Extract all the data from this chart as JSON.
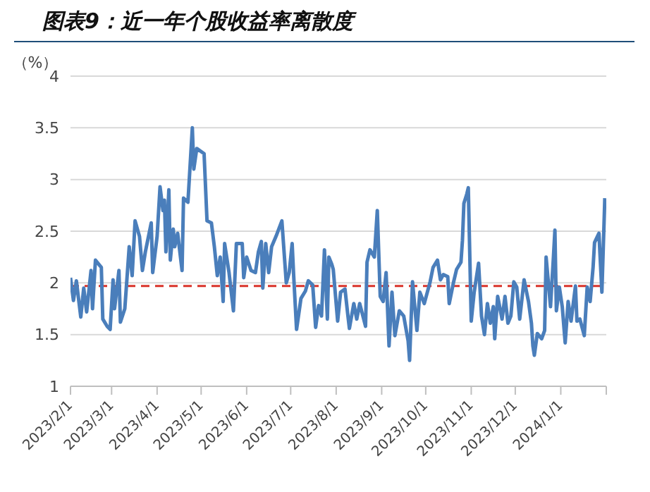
{
  "chart_data": {
    "type": "line",
    "title": "图表9：近一年个股收益率离散度",
    "ylabel": "（%）",
    "x": [
      "2023-02-01",
      "2023-02-03",
      "2023-02-05",
      "2023-02-08",
      "2023-02-10",
      "2023-02-12",
      "2023-02-15",
      "2023-02-16",
      "2023-02-18",
      "2023-02-22",
      "2023-02-23",
      "2023-02-26",
      "2023-02-28",
      "2023-03-02",
      "2023-03-03",
      "2023-03-06",
      "2023-03-07",
      "2023-03-10",
      "2023-03-13",
      "2023-03-15",
      "2023-03-17",
      "2023-03-20",
      "2023-03-22",
      "2023-03-24",
      "2023-03-28",
      "2023-03-29",
      "2023-04-01",
      "2023-04-03",
      "2023-04-05",
      "2023-04-06",
      "2023-04-07",
      "2023-04-09",
      "2023-04-10",
      "2023-04-12",
      "2023-04-13",
      "2023-04-15",
      "2023-04-18",
      "2023-04-19",
      "2023-04-22",
      "2023-04-25",
      "2023-04-26",
      "2023-04-28",
      "2023-05-03",
      "2023-05-05",
      "2023-05-08",
      "2023-05-10",
      "2023-05-12",
      "2023-05-14",
      "2023-05-16",
      "2023-05-17",
      "2023-05-20",
      "2023-05-23",
      "2023-05-25",
      "2023-05-29",
      "2023-05-30",
      "2023-06-01",
      "2023-06-04",
      "2023-06-07",
      "2023-06-09",
      "2023-06-11",
      "2023-06-12",
      "2023-06-14",
      "2023-06-16",
      "2023-06-18",
      "2023-06-21",
      "2023-06-25",
      "2023-06-28",
      "2023-06-30",
      "2023-07-02",
      "2023-07-03",
      "2023-07-05",
      "2023-07-08",
      "2023-07-11",
      "2023-07-13",
      "2023-07-16",
      "2023-07-18",
      "2023-07-20",
      "2023-07-22",
      "2023-07-24",
      "2023-07-26",
      "2023-07-27",
      "2023-07-29",
      "2023-07-30",
      "2023-08-02",
      "2023-08-04",
      "2023-08-07",
      "2023-08-09",
      "2023-08-10",
      "2023-08-13",
      "2023-08-15",
      "2023-08-17",
      "2023-08-21",
      "2023-08-22",
      "2023-08-24",
      "2023-08-27",
      "2023-08-29",
      "2023-08-31",
      "2023-09-02",
      "2023-09-04",
      "2023-09-06",
      "2023-09-08",
      "2023-09-10",
      "2023-09-13",
      "2023-09-16",
      "2023-09-19",
      "2023-09-20",
      "2023-09-22",
      "2023-09-25",
      "2023-09-27",
      "2023-09-30",
      "2023-10-04",
      "2023-10-06",
      "2023-10-09",
      "2023-10-11",
      "2023-10-13",
      "2023-10-16",
      "2023-10-17",
      "2023-10-20",
      "2023-10-22",
      "2023-10-25",
      "2023-10-26",
      "2023-10-27",
      "2023-10-29",
      "2023-10-30",
      "2023-11-01",
      "2023-11-03",
      "2023-11-06",
      "2023-11-08",
      "2023-11-10",
      "2023-11-12",
      "2023-11-14",
      "2023-11-16",
      "2023-11-17",
      "2023-11-19",
      "2023-11-22",
      "2023-11-24",
      "2023-11-26",
      "2023-11-28",
      "2023-11-30",
      "2023-12-02",
      "2023-12-04",
      "2023-12-07",
      "2023-12-10",
      "2023-12-12",
      "2023-12-13",
      "2023-12-14",
      "2023-12-16",
      "2023-12-19",
      "2023-12-21",
      "2023-12-22",
      "2023-12-25",
      "2023-12-27",
      "2023-12-28",
      "2023-12-29",
      "2023-12-31",
      "2024-01-02",
      "2024-01-04",
      "2024-01-06",
      "2024-01-08",
      "2024-01-11",
      "2024-01-12",
      "2024-01-14",
      "2024-01-17",
      "2024-01-19",
      "2024-01-21",
      "2024-01-23",
      "2024-01-24",
      "2024-01-27",
      "2024-01-29",
      "2024-01-31"
    ],
    "series": [
      {
        "color": "#4a7ebb",
        "values": [
          2.05,
          1.83,
          2.02,
          1.67,
          1.95,
          1.72,
          2.12,
          1.75,
          2.22,
          2.15,
          1.65,
          1.58,
          1.55,
          2.03,
          1.75,
          2.12,
          1.62,
          1.75,
          2.35,
          2.07,
          2.6,
          2.45,
          2.12,
          2.3,
          2.58,
          2.1,
          2.45,
          2.93,
          2.7,
          2.8,
          2.3,
          2.9,
          2.22,
          2.52,
          2.35,
          2.48,
          2.12,
          2.82,
          2.78,
          3.5,
          3.1,
          3.3,
          3.25,
          2.6,
          2.58,
          2.35,
          2.07,
          2.25,
          1.82,
          2.38,
          2.1,
          1.73,
          2.38,
          2.38,
          2.05,
          2.25,
          2.12,
          2.1,
          2.3,
          2.4,
          1.95,
          2.38,
          2.1,
          2.35,
          2.45,
          2.6,
          2.0,
          2.1,
          2.38,
          2.08,
          1.55,
          1.85,
          1.92,
          2.02,
          1.98,
          1.57,
          1.78,
          1.68,
          2.32,
          1.65,
          2.25,
          2.18,
          2.13,
          1.63,
          1.91,
          1.94,
          1.68,
          1.56,
          1.8,
          1.65,
          1.8,
          1.58,
          2.2,
          2.32,
          2.25,
          2.7,
          1.87,
          1.82,
          2.1,
          1.39,
          1.91,
          1.49,
          1.73,
          1.68,
          1.44,
          1.25,
          2.01,
          1.54,
          1.91,
          1.8,
          2.01,
          2.15,
          2.22,
          2.03,
          2.08,
          2.06,
          1.8,
          2.01,
          2.13,
          2.2,
          2.41,
          2.77,
          2.86,
          2.92,
          1.63,
          1.91,
          2.19,
          1.68,
          1.5,
          1.8,
          1.61,
          1.77,
          1.46,
          1.87,
          1.65,
          1.87,
          1.61,
          1.68,
          2.01,
          1.96,
          1.65,
          2.03,
          1.82,
          1.61,
          1.39,
          1.3,
          1.51,
          1.46,
          1.54,
          2.25,
          1.77,
          2.25,
          2.51,
          1.73,
          1.96,
          1.77,
          1.42,
          1.82,
          1.63,
          1.97,
          1.63,
          1.65,
          1.49,
          1.96,
          1.82,
          2.15,
          2.39,
          2.48,
          1.91,
          2.82
        ]
      }
    ],
    "xlim": [
      "2023-02-01",
      "2024-02-01"
    ],
    "xticks": [
      {
        "value": "2023-02-01",
        "label": "2023/2/1"
      },
      {
        "value": "2023-03-01",
        "label": "2023/3/1"
      },
      {
        "value": "2023-04-01",
        "label": "2023/4/1"
      },
      {
        "value": "2023-05-01",
        "label": "2023/5/1"
      },
      {
        "value": "2023-06-01",
        "label": "2023/6/1"
      },
      {
        "value": "2023-07-01",
        "label": "2023/7/1"
      },
      {
        "value": "2023-08-01",
        "label": "2023/8/1"
      },
      {
        "value": "2023-09-01",
        "label": "2023/9/1"
      },
      {
        "value": "2023-10-01",
        "label": "2023/10/1"
      },
      {
        "value": "2023-11-01",
        "label": "2023/11/1"
      },
      {
        "value": "2023-12-01",
        "label": "2023/12/1"
      },
      {
        "value": "2024-01-01",
        "label": "2024/1/1"
      },
      {
        "value": "2024-02-01",
        "label": null
      }
    ],
    "ylim": [
      1,
      4
    ],
    "yticks": [
      1,
      1.5,
      2,
      2.5,
      3,
      3.5,
      4
    ],
    "grid": "y",
    "marker": "none",
    "line_style": "solid",
    "legend": false,
    "ref_lines": [
      {
        "axis": "y",
        "value": 1.97,
        "color": "#d9342b",
        "line_style": "dashed"
      }
    ]
  }
}
